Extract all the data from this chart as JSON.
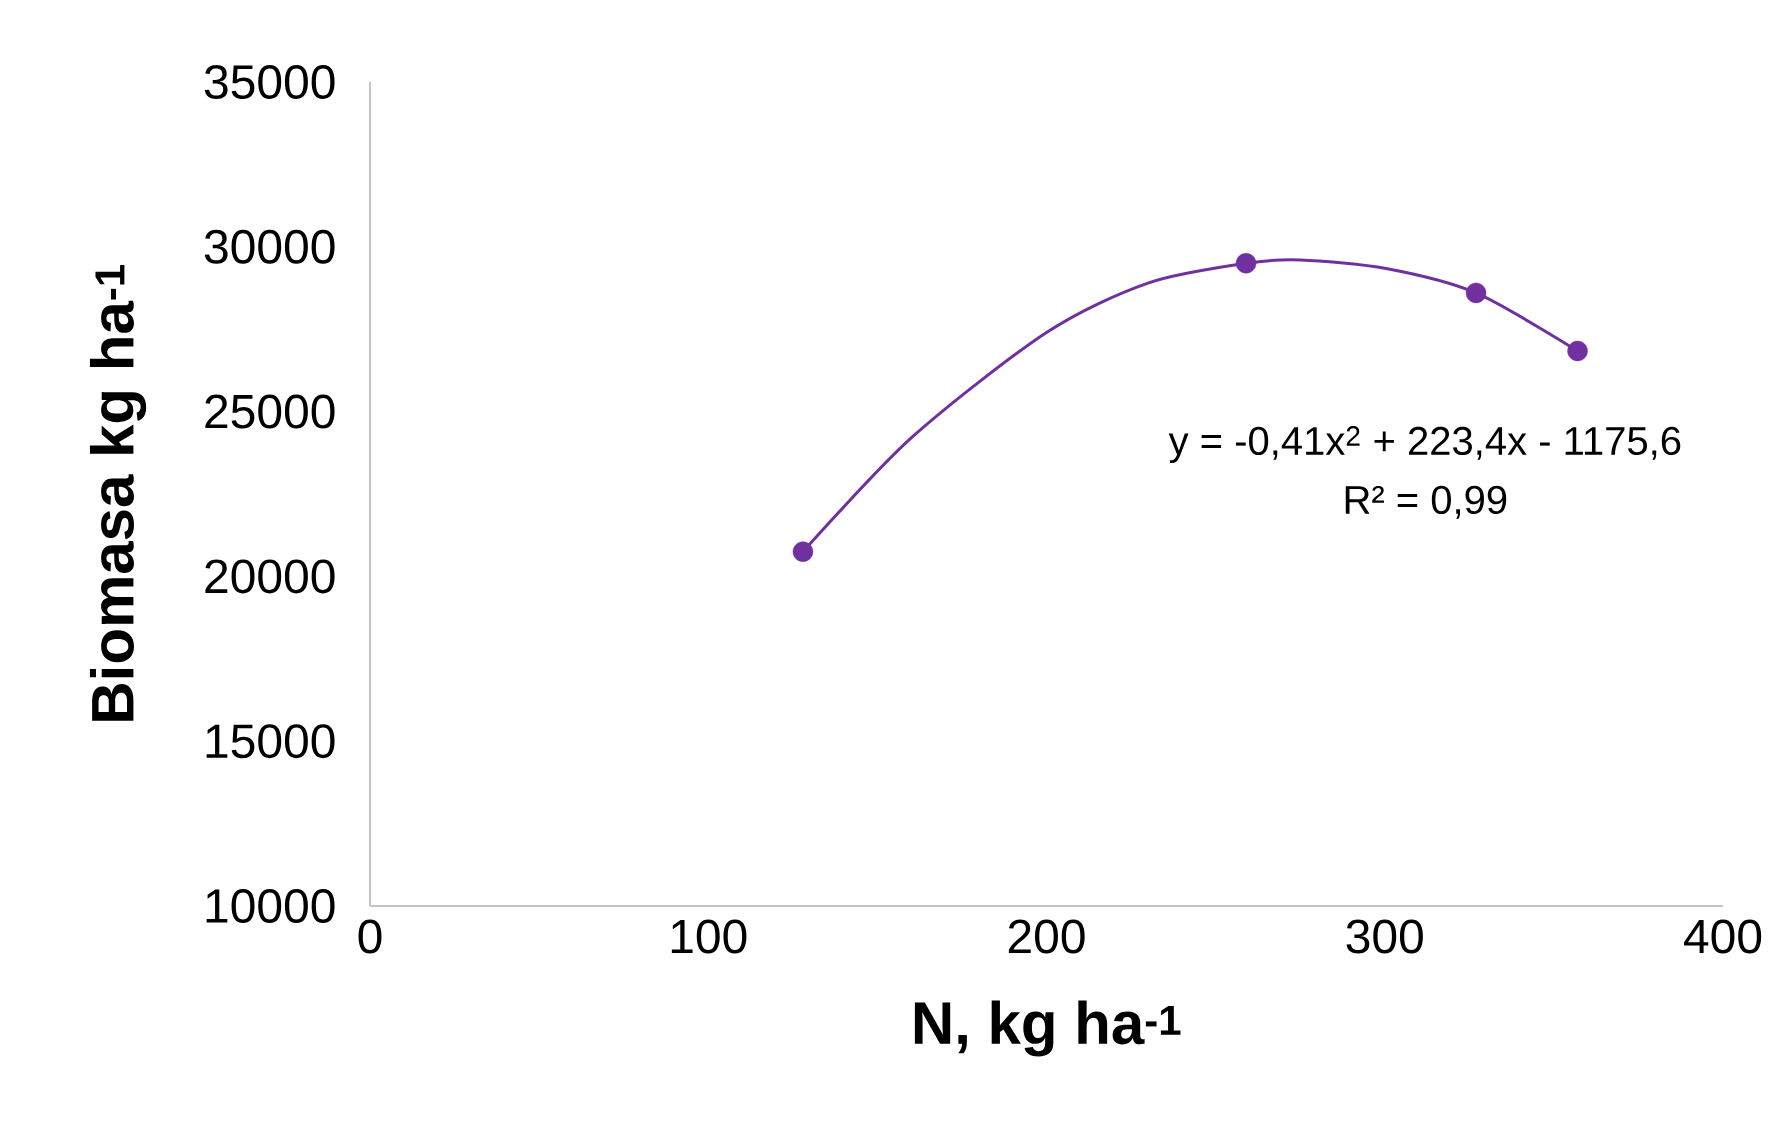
{
  "chart_data": {
    "type": "scatter",
    "xlabel": "N, kg ha$^{-1}$",
    "ylabel": "Biomasa kg ha$^{-1}$",
    "xlim": [
      0,
      400
    ],
    "xticks": [
      0,
      100,
      200,
      300,
      400
    ],
    "ylim": [
      10000,
      35000
    ],
    "yticks": [
      10000,
      15000,
      20000,
      25000,
      30000,
      35000
    ],
    "series": [
      {
        "type": "line",
        "marker": "none",
        "color": "#7030a0",
        "x": [
          128,
          160,
          200,
          230,
          259,
          275,
          300,
          327,
          357
        ],
        "values": [
          20750,
          24200,
          27400,
          28900,
          29500,
          29600,
          29350,
          28600,
          26840
        ]
      },
      {
        "marker": "circle",
        "color": "#7030a0",
        "x": [
          128,
          259,
          327,
          357
        ],
        "values": [
          20750,
          29500,
          28600,
          26840
        ]
      }
    ],
    "annotations": [
      "y = -0,41x$^{2}$ + 223,4x - 1175,6",
      "R² = 0,99"
    ]
  }
}
